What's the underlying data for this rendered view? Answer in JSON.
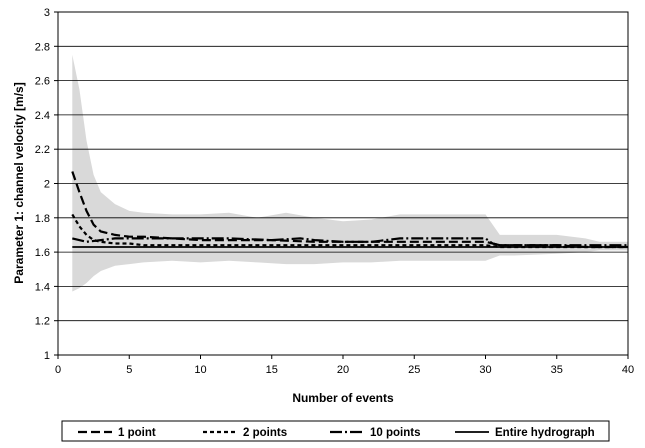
{
  "chart_data": {
    "type": "line",
    "title": "",
    "xlabel": "Number of events",
    "ylabel": "Parameter 1: channel velocity [m/s]",
    "xlim": [
      0,
      40
    ],
    "ylim": [
      1,
      3
    ],
    "x_ticks": [
      0,
      5,
      10,
      15,
      20,
      25,
      30,
      35,
      40
    ],
    "y_ticks": [
      1,
      1.2,
      1.4,
      1.6,
      1.8,
      2,
      2.2,
      2.4,
      2.6,
      2.8,
      3
    ],
    "y_tick_labels": [
      "1",
      "1.2",
      "1.4",
      "1.6",
      "1.8",
      "2",
      "2.2",
      "2.4",
      "2.6",
      "2.8",
      "3"
    ],
    "grid": "horizontal",
    "legend_position": "bottom",
    "band": {
      "x": [
        1,
        1.5,
        2,
        2.5,
        3,
        4,
        5,
        6,
        8,
        10,
        12,
        14,
        16,
        18,
        20,
        22,
        24,
        26,
        28,
        30,
        31,
        32,
        35,
        37,
        38,
        40
      ],
      "upper": [
        2.75,
        2.55,
        2.25,
        2.05,
        1.95,
        1.88,
        1.84,
        1.83,
        1.82,
        1.82,
        1.83,
        1.8,
        1.83,
        1.8,
        1.78,
        1.79,
        1.82,
        1.82,
        1.82,
        1.82,
        1.7,
        1.7,
        1.7,
        1.68,
        1.66,
        1.66
      ],
      "lower": [
        1.37,
        1.39,
        1.42,
        1.46,
        1.49,
        1.52,
        1.53,
        1.54,
        1.55,
        1.54,
        1.55,
        1.54,
        1.53,
        1.53,
        1.54,
        1.54,
        1.55,
        1.55,
        1.55,
        1.55,
        1.58,
        1.58,
        1.59,
        1.6,
        1.61,
        1.61
      ]
    },
    "series": [
      {
        "name": "1 point",
        "dash": "9,4",
        "x": [
          1,
          1.5,
          2,
          2.5,
          3,
          4,
          5,
          6,
          8,
          10,
          12,
          15,
          18,
          20,
          25,
          30,
          31,
          35,
          37,
          40
        ],
        "y": [
          2.07,
          1.95,
          1.84,
          1.76,
          1.72,
          1.7,
          1.69,
          1.69,
          1.68,
          1.67,
          1.67,
          1.67,
          1.66,
          1.66,
          1.66,
          1.66,
          1.64,
          1.64,
          1.63,
          1.63
        ]
      },
      {
        "name": "2 points",
        "dash": "4,3",
        "x": [
          1,
          1.5,
          2,
          2.5,
          3,
          4,
          5,
          6,
          8,
          10,
          15,
          20,
          25,
          30,
          31,
          35,
          40
        ],
        "y": [
          1.82,
          1.75,
          1.7,
          1.67,
          1.66,
          1.65,
          1.65,
          1.64,
          1.64,
          1.64,
          1.64,
          1.64,
          1.64,
          1.64,
          1.63,
          1.63,
          1.63
        ]
      },
      {
        "name": "10 points",
        "dash": "12,3,2,3",
        "x": [
          1,
          2,
          3,
          4,
          6,
          8,
          10,
          12,
          15,
          17,
          18,
          20,
          22,
          24,
          26,
          28,
          30,
          30.5,
          31,
          35,
          40
        ],
        "y": [
          1.68,
          1.66,
          1.67,
          1.68,
          1.68,
          1.68,
          1.68,
          1.68,
          1.67,
          1.68,
          1.67,
          1.66,
          1.66,
          1.68,
          1.68,
          1.68,
          1.68,
          1.65,
          1.64,
          1.64,
          1.64
        ]
      },
      {
        "name": "Entire hydrograph",
        "dash": "",
        "x": [
          1,
          40
        ],
        "y": [
          1.63,
          1.63
        ]
      }
    ],
    "colors": {
      "band": "#d9d9d9",
      "line": "#000000",
      "grid": "#000000"
    }
  }
}
